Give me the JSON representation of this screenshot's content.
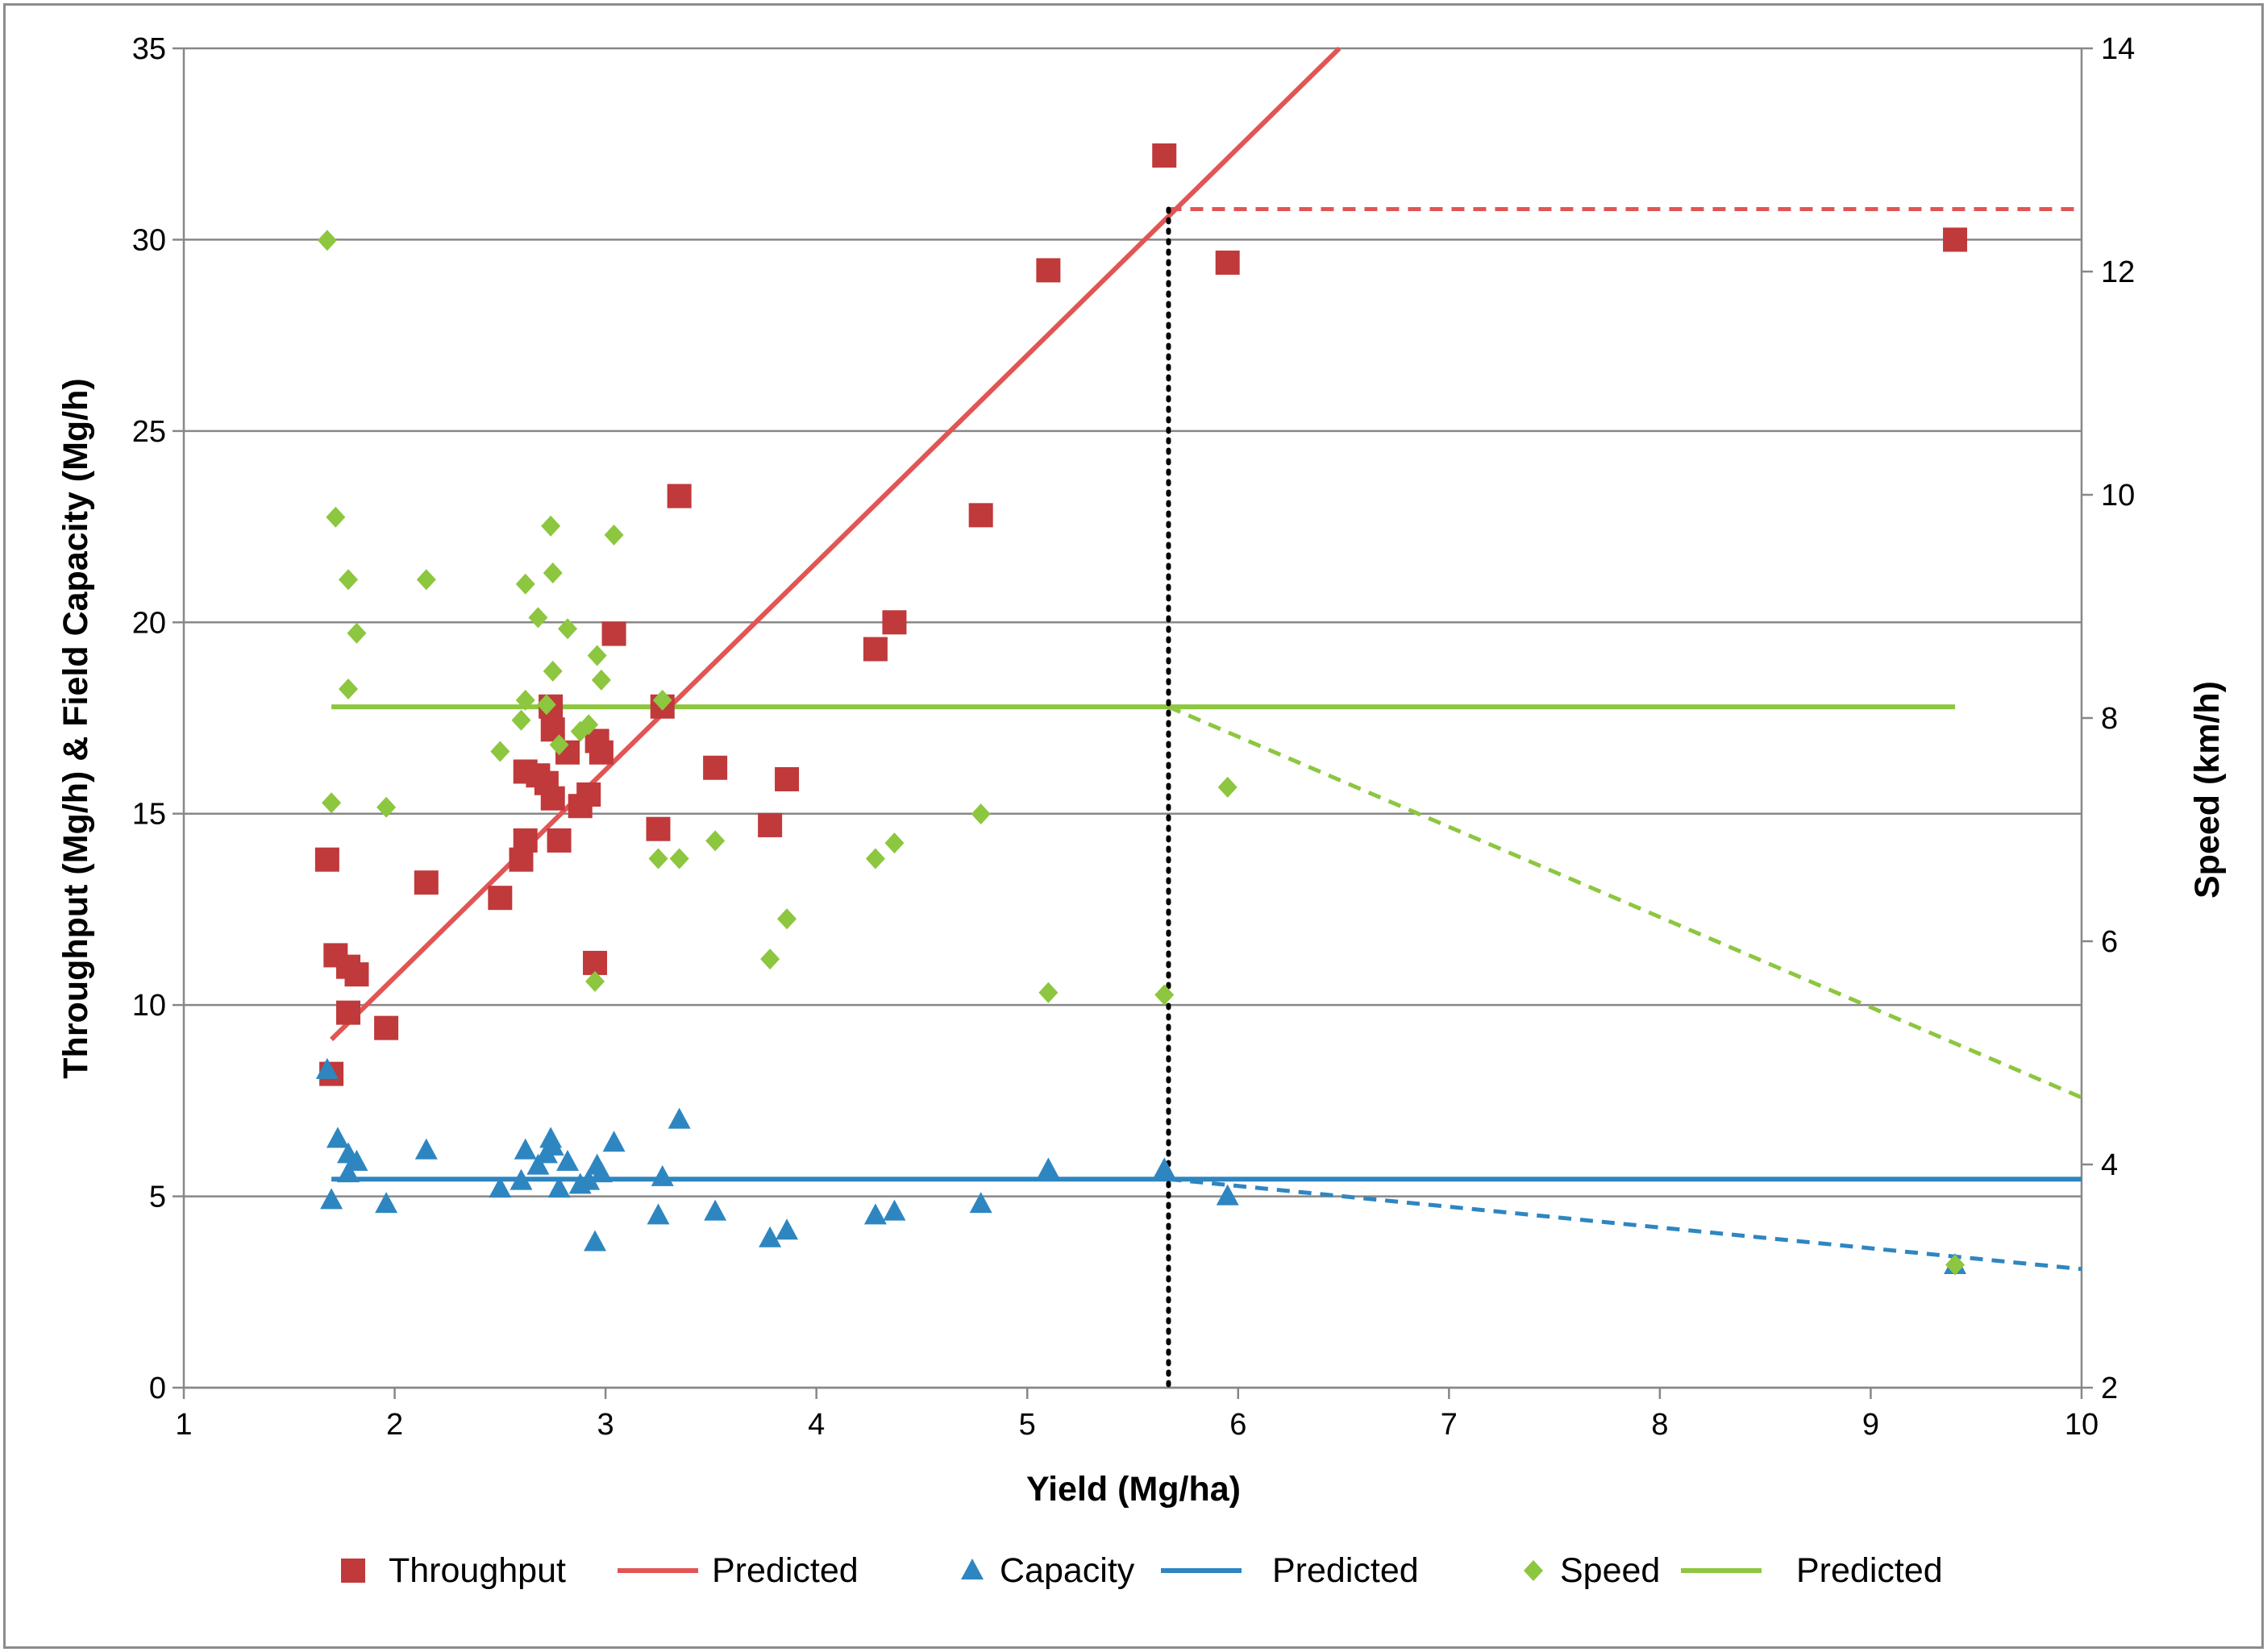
{
  "chart_data": {
    "type": "scatter",
    "xlabel": "Yield (Mg/ha)",
    "ylabel_left": "Throughput (Mg/h) & Field Capacity (Mg/h)",
    "ylabel_right": "Speed (km/h)",
    "xlim": [
      1,
      10
    ],
    "ylim_left": [
      0,
      35
    ],
    "ylim_right": [
      2,
      14
    ],
    "xticks": [
      "1",
      "2",
      "3",
      "4",
      "5",
      "6",
      "7",
      "8",
      "9",
      "10"
    ],
    "yticks_left": [
      "0",
      "5",
      "10",
      "15",
      "20",
      "25",
      "30",
      "35"
    ],
    "yticks_right": [
      "2",
      "4",
      "6",
      "8",
      "10",
      "12",
      "14"
    ],
    "grid": "horizontal",
    "legend_position": "bottom",
    "vertical_marker_x": 5.67,
    "series": [
      {
        "name": "Throughput",
        "kind": "scatter",
        "marker": "square",
        "axis": "left",
        "color": "#C0393B",
        "points": [
          [
            1.68,
            13.8
          ],
          [
            1.7,
            8.2
          ],
          [
            1.72,
            11.3
          ],
          [
            1.78,
            11.0
          ],
          [
            1.78,
            9.8
          ],
          [
            1.82,
            10.8
          ],
          [
            1.96,
            9.4
          ],
          [
            2.15,
            13.2
          ],
          [
            2.5,
            12.8
          ],
          [
            2.6,
            13.8
          ],
          [
            2.62,
            14.3
          ],
          [
            2.62,
            16.1
          ],
          [
            2.68,
            16.0
          ],
          [
            2.72,
            15.8
          ],
          [
            2.74,
            17.8
          ],
          [
            2.75,
            17.2
          ],
          [
            2.75,
            15.4
          ],
          [
            2.78,
            14.3
          ],
          [
            2.82,
            16.6
          ],
          [
            2.88,
            15.2
          ],
          [
            2.92,
            15.5
          ],
          [
            2.95,
            11.1
          ],
          [
            2.96,
            16.9
          ],
          [
            2.98,
            16.6
          ],
          [
            3.04,
            19.7
          ],
          [
            3.25,
            14.6
          ],
          [
            3.27,
            17.8
          ],
          [
            3.35,
            23.3
          ],
          [
            3.52,
            16.2
          ],
          [
            3.78,
            14.7
          ],
          [
            3.86,
            15.9
          ],
          [
            4.28,
            19.3
          ],
          [
            4.37,
            20.0
          ],
          [
            4.78,
            22.8
          ],
          [
            5.1,
            29.2
          ],
          [
            5.65,
            32.2
          ],
          [
            5.95,
            29.4
          ],
          [
            9.4,
            30.0
          ]
        ]
      },
      {
        "name": "Predicted",
        "kind": "line",
        "axis": "left",
        "color": "#E15554",
        "points": [
          [
            1.7,
            9.1
          ],
          [
            6.48,
            35.0
          ]
        ],
        "extension": [
          [
            5.67,
            30.8
          ],
          [
            10.0,
            30.8
          ]
        ]
      },
      {
        "name": "Capacity",
        "kind": "scatter",
        "marker": "triangle",
        "axis": "left",
        "color": "#2E86C1",
        "points": [
          [
            1.68,
            8.3
          ],
          [
            1.7,
            4.9
          ],
          [
            1.73,
            6.5
          ],
          [
            1.78,
            6.1
          ],
          [
            1.78,
            5.6
          ],
          [
            1.82,
            5.9
          ],
          [
            1.96,
            4.8
          ],
          [
            2.15,
            6.2
          ],
          [
            2.5,
            5.2
          ],
          [
            2.6,
            5.4
          ],
          [
            2.62,
            6.2
          ],
          [
            2.68,
            5.8
          ],
          [
            2.72,
            6.1
          ],
          [
            2.74,
            6.5
          ],
          [
            2.75,
            6.3
          ],
          [
            2.78,
            5.2
          ],
          [
            2.82,
            5.9
          ],
          [
            2.88,
            5.3
          ],
          [
            2.92,
            5.4
          ],
          [
            2.95,
            3.8
          ],
          [
            2.96,
            5.8
          ],
          [
            2.98,
            5.6
          ],
          [
            3.04,
            6.4
          ],
          [
            3.25,
            4.5
          ],
          [
            3.27,
            5.5
          ],
          [
            3.35,
            7.0
          ],
          [
            3.52,
            4.6
          ],
          [
            3.78,
            3.9
          ],
          [
            3.86,
            4.1
          ],
          [
            4.28,
            4.5
          ],
          [
            4.37,
            4.6
          ],
          [
            4.78,
            4.8
          ],
          [
            5.1,
            5.7
          ],
          [
            5.65,
            5.7
          ],
          [
            5.95,
            5.0
          ],
          [
            9.4,
            3.2
          ]
        ]
      },
      {
        "name": "Predicted",
        "kind": "line",
        "axis": "left",
        "color": "#2E86C1",
        "points": [
          [
            1.7,
            5.45
          ],
          [
            10.0,
            5.45
          ]
        ],
        "extension": [
          [
            5.67,
            5.45
          ],
          [
            10.0,
            3.1
          ]
        ]
      },
      {
        "name": "Speed",
        "kind": "scatter",
        "marker": "diamond",
        "axis": "right",
        "color": "#8DC63F",
        "points": [
          [
            1.68,
            12.28
          ],
          [
            1.7,
            7.24
          ],
          [
            1.72,
            9.8
          ],
          [
            1.78,
            9.24
          ],
          [
            1.78,
            8.26
          ],
          [
            1.82,
            8.76
          ],
          [
            1.96,
            7.2
          ],
          [
            2.15,
            9.24
          ],
          [
            2.5,
            7.7
          ],
          [
            2.6,
            7.98
          ],
          [
            2.62,
            9.2
          ],
          [
            2.62,
            8.16
          ],
          [
            2.68,
            8.9
          ],
          [
            2.72,
            8.12
          ],
          [
            2.74,
            9.72
          ],
          [
            2.75,
            9.3
          ],
          [
            2.75,
            8.42
          ],
          [
            2.78,
            7.76
          ],
          [
            2.82,
            8.8
          ],
          [
            2.88,
            7.88
          ],
          [
            2.92,
            7.94
          ],
          [
            2.95,
            5.64
          ],
          [
            2.96,
            8.56
          ],
          [
            2.98,
            8.34
          ],
          [
            3.04,
            9.64
          ],
          [
            3.25,
            6.74
          ],
          [
            3.27,
            8.16
          ],
          [
            3.35,
            6.74
          ],
          [
            3.52,
            6.9
          ],
          [
            3.78,
            5.84
          ],
          [
            3.86,
            6.2
          ],
          [
            4.28,
            6.74
          ],
          [
            4.37,
            6.88
          ],
          [
            4.78,
            7.14
          ],
          [
            5.1,
            5.54
          ],
          [
            5.65,
            5.52
          ],
          [
            5.95,
            7.38
          ],
          [
            9.4,
            3.1
          ]
        ]
      },
      {
        "name": "Predicted",
        "kind": "line",
        "axis": "right",
        "color": "#8DC63F",
        "points": [
          [
            1.7,
            8.1
          ],
          [
            9.4,
            8.1
          ]
        ],
        "extension": [
          [
            5.67,
            8.1
          ],
          [
            10.0,
            4.6
          ]
        ]
      }
    ],
    "legend": [
      {
        "label": "Throughput",
        "symbol": "square",
        "color": "#C0393B"
      },
      {
        "label": "Predicted",
        "symbol": "line",
        "color": "#E15554"
      },
      {
        "label": "Capacity",
        "symbol": "triangle",
        "color": "#2E86C1"
      },
      {
        "label": "Predicted",
        "symbol": "line",
        "color": "#2E86C1"
      },
      {
        "label": "Speed",
        "symbol": "diamond",
        "color": "#8DC63F"
      },
      {
        "label": "Predicted",
        "symbol": "line",
        "color": "#8DC63F"
      }
    ]
  }
}
